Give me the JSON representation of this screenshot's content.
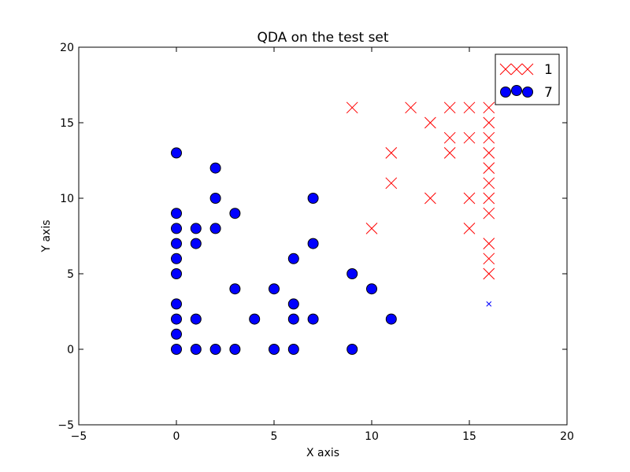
{
  "chart_data": {
    "type": "scatter",
    "title": "QDA on the test set",
    "xlabel": "X axis",
    "ylabel": "Y axis",
    "xlim": [
      -5,
      20
    ],
    "ylim": [
      -5,
      20
    ],
    "xticks": [
      -5,
      0,
      5,
      10,
      15,
      20
    ],
    "yticks": [
      -5,
      0,
      5,
      10,
      15,
      20
    ],
    "grid": false,
    "legend_position": "top-right",
    "series": [
      {
        "name": "1",
        "marker": "x",
        "color": "#ff0000",
        "points": [
          [
            9,
            16
          ],
          [
            12,
            16
          ],
          [
            14,
            16
          ],
          [
            15,
            16
          ],
          [
            16,
            16
          ],
          [
            13,
            15
          ],
          [
            16,
            15
          ],
          [
            14,
            14
          ],
          [
            15,
            14
          ],
          [
            16,
            14
          ],
          [
            11,
            13
          ],
          [
            14,
            13
          ],
          [
            16,
            13
          ],
          [
            16,
            12
          ],
          [
            11,
            11
          ],
          [
            16,
            11
          ],
          [
            13,
            10
          ],
          [
            15,
            10
          ],
          [
            16,
            10
          ],
          [
            16,
            9
          ],
          [
            10,
            8
          ],
          [
            15,
            8
          ],
          [
            16,
            7
          ],
          [
            16,
            6
          ],
          [
            16,
            5
          ]
        ]
      },
      {
        "name": "7",
        "marker": "o",
        "color": "#0000ff",
        "points": [
          [
            0,
            13
          ],
          [
            2,
            12
          ],
          [
            2,
            10
          ],
          [
            7,
            10
          ],
          [
            0,
            9
          ],
          [
            3,
            9
          ],
          [
            0,
            8
          ],
          [
            1,
            8
          ],
          [
            2,
            8
          ],
          [
            0,
            7
          ],
          [
            1,
            7
          ],
          [
            7,
            7
          ],
          [
            0,
            6
          ],
          [
            6,
            6
          ],
          [
            0,
            5
          ],
          [
            9,
            5
          ],
          [
            3,
            4
          ],
          [
            5,
            4
          ],
          [
            10,
            4
          ],
          [
            0,
            3
          ],
          [
            6,
            3
          ],
          [
            0,
            2
          ],
          [
            1,
            2
          ],
          [
            4,
            2
          ],
          [
            6,
            2
          ],
          [
            7,
            2
          ],
          [
            11,
            2
          ],
          [
            0,
            1
          ],
          [
            0,
            0
          ],
          [
            1,
            0
          ],
          [
            2,
            0
          ],
          [
            3,
            0
          ],
          [
            5,
            0
          ],
          [
            6,
            0
          ],
          [
            9,
            0
          ]
        ]
      }
    ],
    "misclassified": [
      {
        "marker": "x",
        "color": "#0000ff",
        "points": [
          [
            16,
            3
          ]
        ]
      }
    ]
  }
}
